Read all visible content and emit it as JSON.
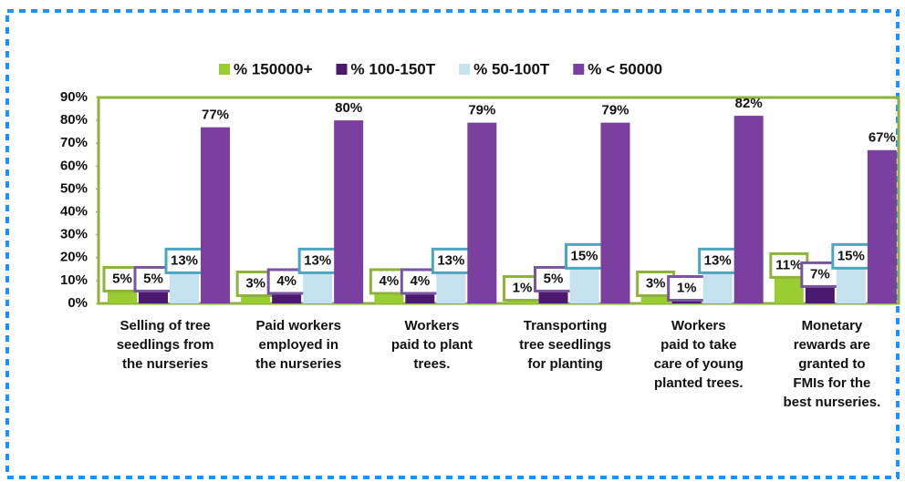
{
  "chart_data": {
    "type": "bar",
    "categories": [
      [
        "Selling of tree",
        "seedlings from",
        "the nurseries"
      ],
      [
        "Paid workers",
        "employed in",
        "the nurseries"
      ],
      [
        "Workers",
        "paid to plant",
        "trees."
      ],
      [
        "Transporting",
        "tree seedlings",
        "for planting"
      ],
      [
        "Workers",
        "paid to take",
        "care of young",
        "planted trees."
      ],
      [
        "Monetary",
        "rewards are",
        "granted to",
        "FMIs for the",
        "best nurseries."
      ]
    ],
    "series": [
      {
        "name": "% 150000+",
        "color": "#9acd32",
        "values": [
          5,
          3,
          4,
          1,
          3,
          11
        ],
        "value_labels": [
          "5%",
          "3%",
          "4%",
          "1%",
          "3%",
          "11%"
        ]
      },
      {
        "name": "% 100-150T",
        "color": "#4b1a6e",
        "values": [
          5,
          4,
          4,
          5,
          1,
          7
        ],
        "value_labels": [
          "5%",
          "4%",
          "4%",
          "5%",
          "1%",
          "7%"
        ]
      },
      {
        "name": "% 50-100T",
        "color": "#c5e3ee",
        "values": [
          13,
          13,
          13,
          15,
          13,
          15
        ],
        "value_labels": [
          "13%",
          "13%",
          "13%",
          "15%",
          "13%",
          "15%"
        ]
      },
      {
        "name": "% < 50000",
        "color": "#7b3fa0",
        "values": [
          77,
          80,
          79,
          79,
          82,
          67
        ],
        "value_labels": [
          "77%",
          "80%",
          "79%",
          "79%",
          "82%",
          "67%"
        ]
      }
    ],
    "ylim": [
      0,
      90
    ],
    "yticks": [
      {
        "value": 0,
        "label": "0%"
      },
      {
        "value": 10,
        "label": "10%"
      },
      {
        "value": 20,
        "label": "20%"
      },
      {
        "value": 30,
        "label": "30%"
      },
      {
        "value": 40,
        "label": "40%"
      },
      {
        "value": 50,
        "label": "50%"
      },
      {
        "value": 60,
        "label": "60%"
      },
      {
        "value": 70,
        "label": "70%"
      },
      {
        "value": 80,
        "label": "80%"
      },
      {
        "value": 90,
        "label": "90%"
      }
    ]
  }
}
